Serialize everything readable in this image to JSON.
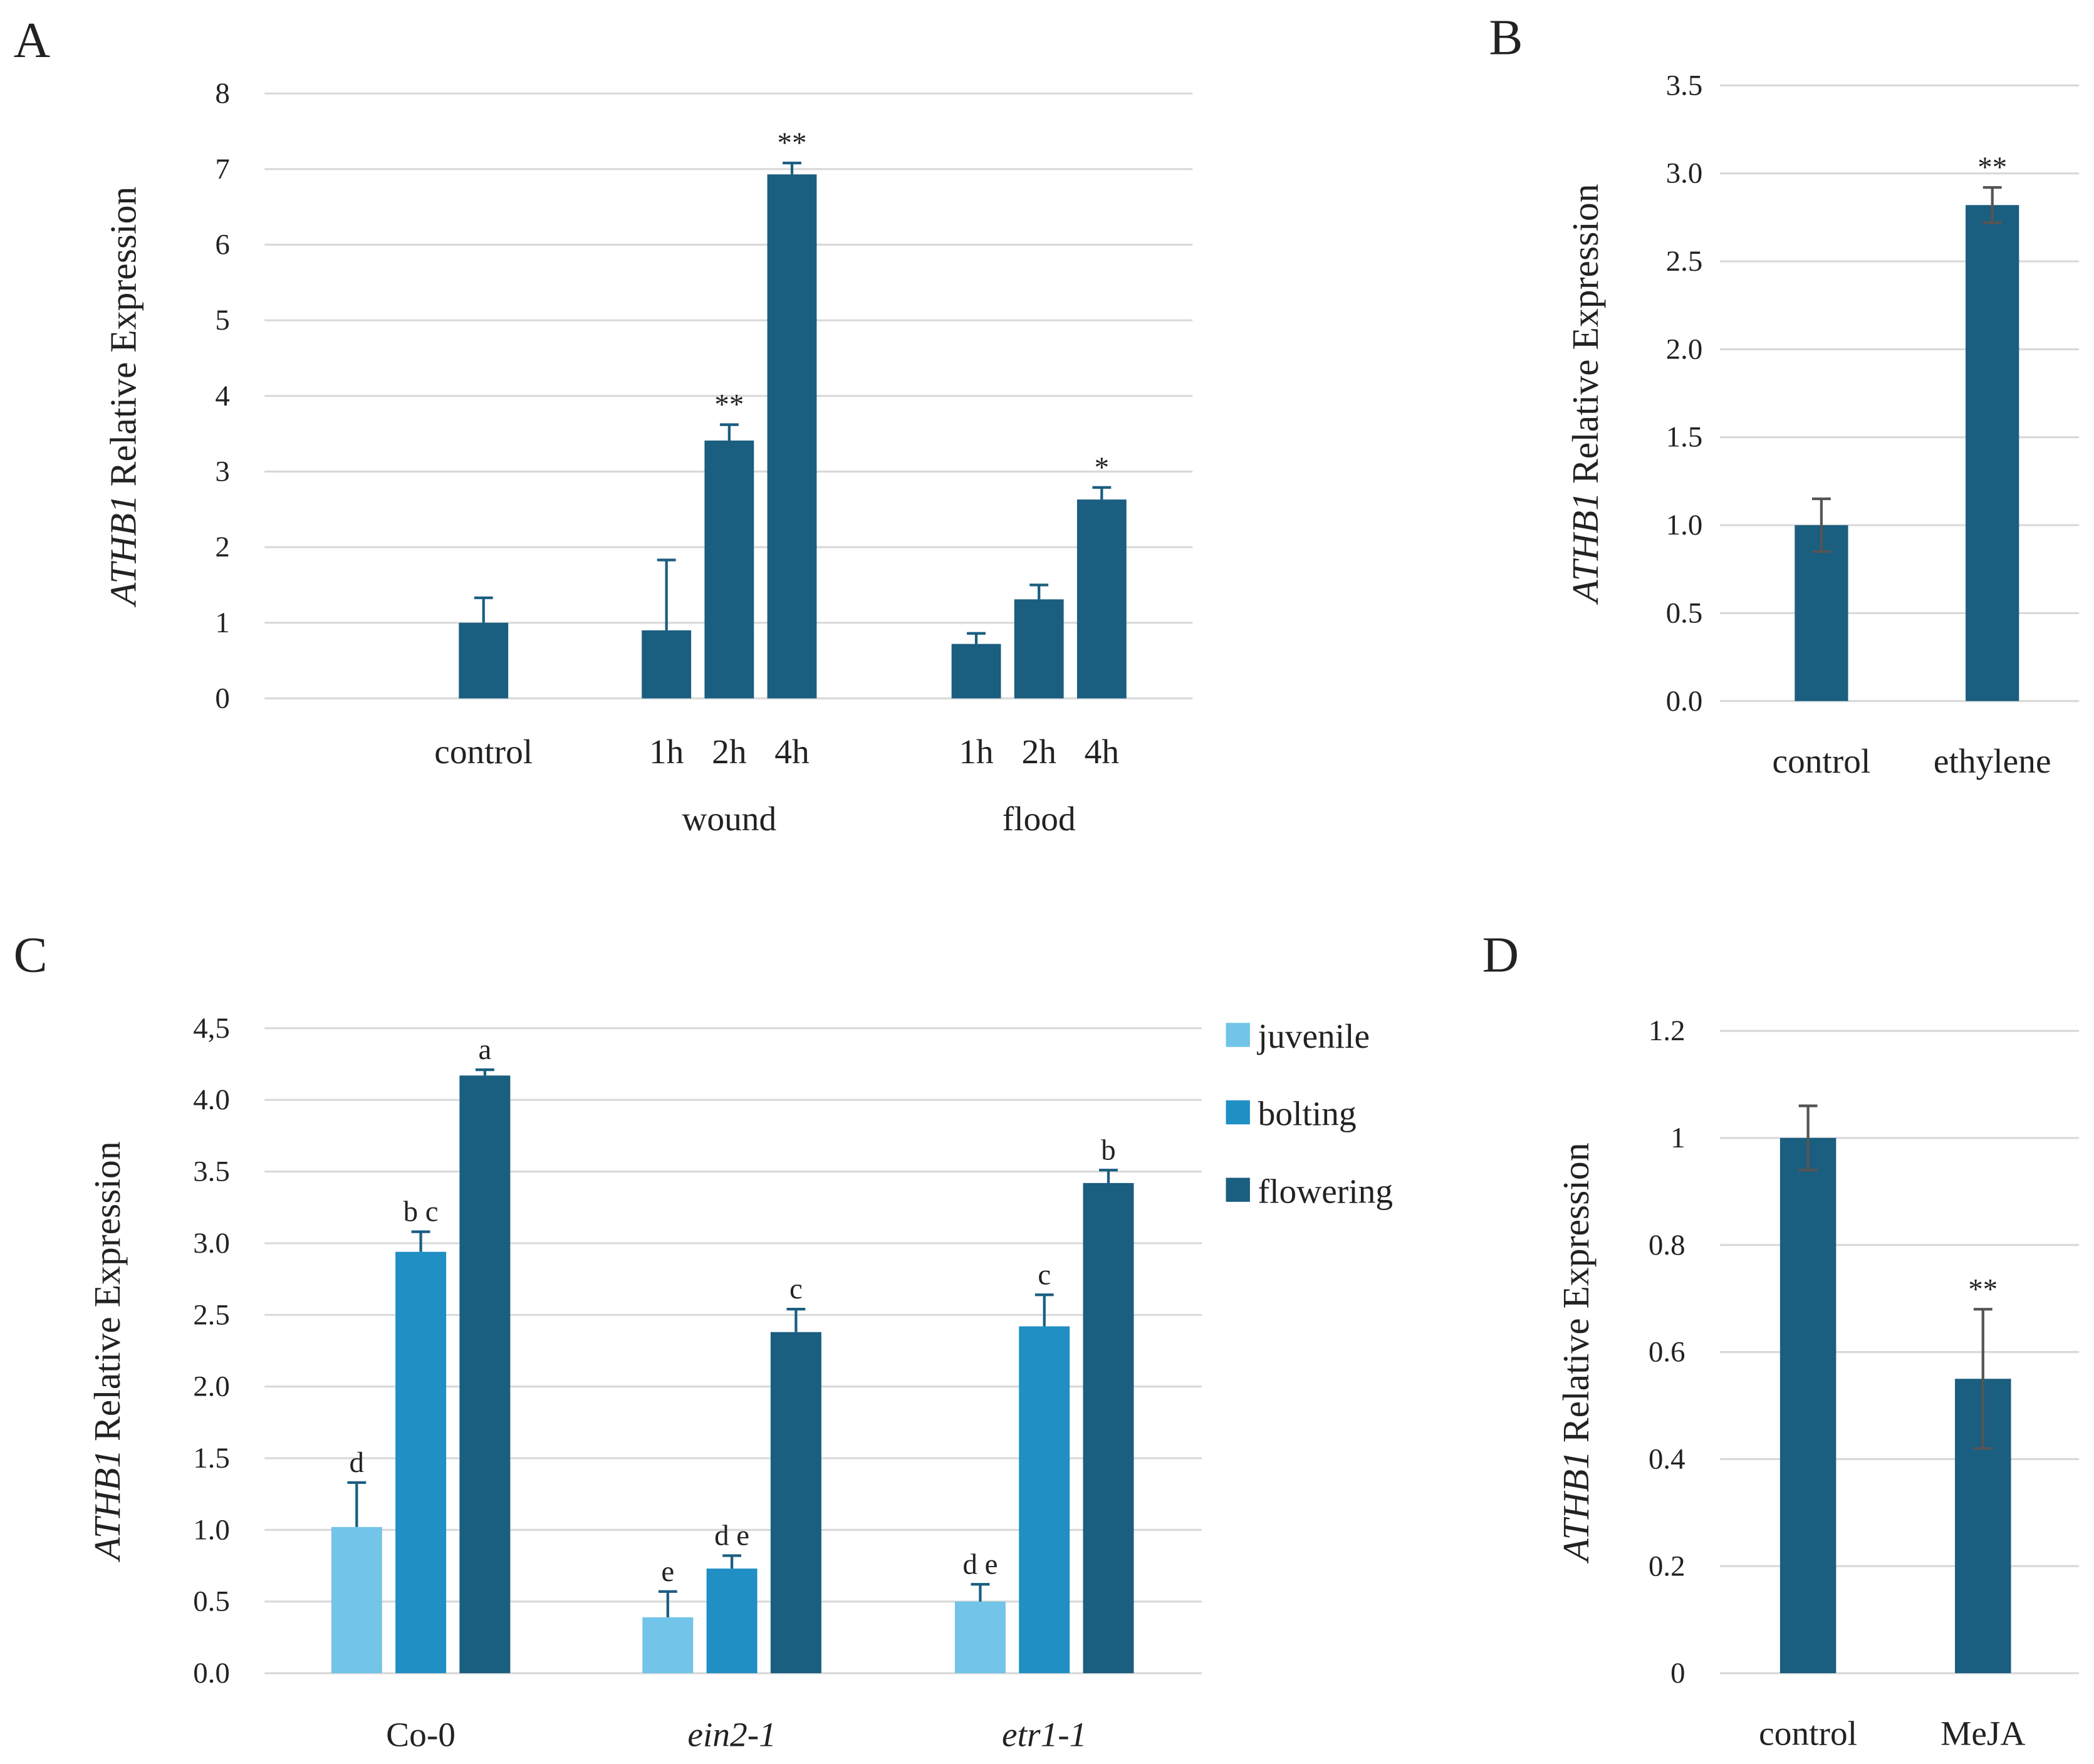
{
  "chart_data": [
    {
      "type": "bar",
      "panel": "A",
      "ylabel_gene": "ATHB1",
      "ylabel": "Relative Expression",
      "ylim": [
        0,
        8
      ],
      "yticks": [
        0,
        1,
        2,
        3,
        4,
        5,
        6,
        7,
        8
      ],
      "grid": true,
      "color": "#1a5e80",
      "error_direction": "plus",
      "groups": [
        {
          "categories": [
            "control"
          ],
          "values": [
            1.0
          ],
          "errors": [
            0.33
          ],
          "labels": [
            null
          ]
        },
        {
          "name": "wound",
          "categories": [
            "1h",
            "2h",
            "4h"
          ],
          "values": [
            0.9,
            3.41,
            6.93
          ],
          "errors": [
            0.93,
            0.21,
            0.15
          ],
          "labels": [
            null,
            "**",
            "**"
          ]
        },
        {
          "name": "flood",
          "categories": [
            "1h",
            "2h",
            "4h"
          ],
          "values": [
            0.72,
            1.31,
            2.63
          ],
          "errors": [
            0.14,
            0.19,
            0.16
          ],
          "labels": [
            null,
            null,
            "*"
          ]
        }
      ]
    },
    {
      "type": "bar",
      "panel": "B",
      "ylabel_gene": "ATHB1",
      "ylabel": "Relative Expression",
      "ylim": [
        0,
        3.5
      ],
      "yticks": [
        {
          "value": 0,
          "label": "0.0"
        },
        0.5,
        {
          "value": 1,
          "label": "1.0"
        },
        1.5,
        {
          "value": 2,
          "label": "2.0"
        },
        2.5,
        {
          "value": 3,
          "label": "3.0"
        },
        3.5
      ],
      "grid": true,
      "color": "#1a5e80",
      "error_direction": "both",
      "categories": [
        "control",
        "ethylene"
      ],
      "values": [
        1.0,
        2.82
      ],
      "errors": [
        0.15,
        0.1
      ],
      "labels": [
        null,
        "**"
      ]
    },
    {
      "type": "bar",
      "panel": "C",
      "ylabel_gene": "ATHB1",
      "ylabel": "Relative Expression",
      "ylim": [
        0,
        4.5
      ],
      "yticks": [
        {
          "value": 0,
          "label": "0.0"
        },
        0.5,
        {
          "value": 1,
          "label": "1.0"
        },
        1.5,
        {
          "value": 2,
          "label": "2.0"
        },
        2.5,
        {
          "value": 3,
          "label": "3.0"
        },
        3.5,
        {
          "value": 4,
          "label": "4.0"
        },
        {
          "value": 4.5,
          "label": "4,5"
        }
      ],
      "grid": true,
      "error_direction": "plus",
      "legend": "right",
      "categories": [
        "Co-0",
        "ein2-1",
        "etr1-1"
      ],
      "category_italic": [
        false,
        true,
        true
      ],
      "series": [
        {
          "name": "juvenile",
          "color": "#72c4e8",
          "values": [
            1.02,
            0.39,
            0.5
          ],
          "errors": [
            0.31,
            0.18,
            0.12
          ],
          "labels": [
            "d",
            "e",
            "d e"
          ]
        },
        {
          "name": "bolting",
          "color": "#1f8fc4",
          "values": [
            2.94,
            0.73,
            2.42
          ],
          "errors": [
            0.14,
            0.09,
            0.22
          ],
          "labels": [
            "b c",
            "d e",
            "c"
          ]
        },
        {
          "name": "flowering",
          "color": "#1a5e80",
          "values": [
            4.17,
            2.38,
            3.42
          ],
          "errors": [
            0.04,
            0.16,
            0.09
          ],
          "labels": [
            "a",
            "c",
            "b"
          ]
        }
      ]
    },
    {
      "type": "bar",
      "panel": "D",
      "ylabel_gene": "ATHB1",
      "ylabel": "Relative Expression",
      "ylim": [
        0,
        1.2
      ],
      "yticks": [
        0,
        0.2,
        0.4,
        0.6,
        0.8,
        1,
        1.2
      ],
      "grid": true,
      "color": "#1a5e80",
      "error_direction": "both",
      "categories": [
        "control",
        "MeJA"
      ],
      "values": [
        1.0,
        0.55
      ],
      "errors": [
        0.06,
        0.13
      ],
      "labels": [
        null,
        "**"
      ]
    }
  ]
}
